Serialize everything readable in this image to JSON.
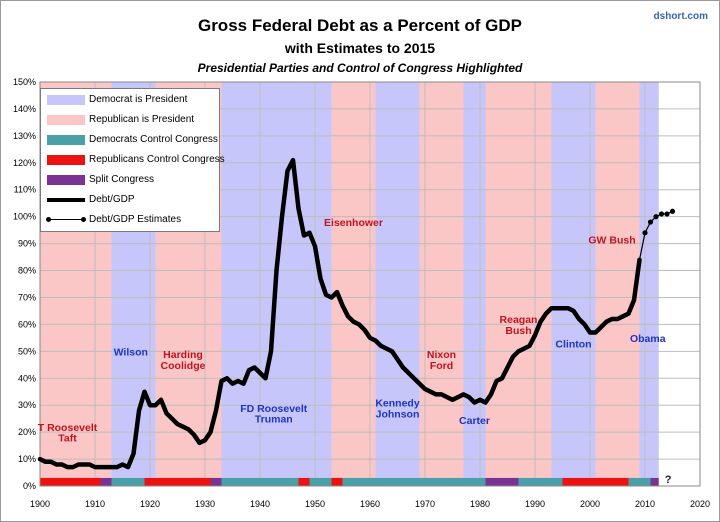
{
  "titles": {
    "title": "Gross Federal Debt as a Percent of GDP",
    "subtitle": "with Estimates to 2015",
    "subtitle2": "Presidential Parties and Control of Congress Highlighted",
    "source": "dshort.com"
  },
  "colors": {
    "democrat_president": "#c6c6fb",
    "republican_president": "#fbc6c6",
    "democrat_congress": "#4aa0a8",
    "republican_congress": "#ee1111",
    "split_congress": "#7a3294",
    "debt_line": "#000000",
    "grid": "#bdbdbd",
    "label_republican": "#c0141e",
    "label_democrat": "#1f35c0"
  },
  "legend": {
    "items": [
      {
        "label": "Democrat is President"
      },
      {
        "label": "Republican is President"
      },
      {
        "label": "Democrats Control Congress"
      },
      {
        "label": "Republicans Control Congress"
      },
      {
        "label": "Split Congress"
      },
      {
        "label": "Debt/GDP"
      },
      {
        "label": "Debt/GDP Estimates"
      }
    ]
  },
  "chart_data": {
    "type": "line",
    "title": "Gross Federal Debt as a Percent of GDP",
    "subtitle": "with Estimates to 2015",
    "xlim": [
      1900,
      2020
    ],
    "ylim": [
      0,
      150
    ],
    "x_ticks": [
      "1900",
      "1910",
      "1920",
      "1930",
      "1940",
      "1950",
      "1960",
      "1970",
      "1980",
      "1990",
      "2000",
      "2010",
      "2020"
    ],
    "y_ticks": [
      "0%",
      "10%",
      "20%",
      "30%",
      "40%",
      "50%",
      "60%",
      "70%",
      "80%",
      "90%",
      "100%",
      "110%",
      "120%",
      "130%",
      "140%",
      "150%"
    ],
    "grid": true,
    "legend_position": "top-left",
    "series": [
      {
        "name": "Debt/GDP",
        "style": "thick",
        "x": [
          1900,
          1901,
          1902,
          1903,
          1904,
          1905,
          1906,
          1907,
          1908,
          1909,
          1910,
          1911,
          1912,
          1913,
          1914,
          1915,
          1916,
          1917,
          1918,
          1919,
          1920,
          1921,
          1922,
          1923,
          1924,
          1925,
          1926,
          1927,
          1928,
          1929,
          1930,
          1931,
          1932,
          1933,
          1934,
          1935,
          1936,
          1937,
          1938,
          1939,
          1940,
          1941,
          1942,
          1943,
          1944,
          1945,
          1946,
          1947,
          1948,
          1949,
          1950,
          1951,
          1952,
          1953,
          1954,
          1955,
          1956,
          1957,
          1958,
          1959,
          1960,
          1961,
          1962,
          1963,
          1964,
          1965,
          1966,
          1967,
          1968,
          1969,
          1970,
          1971,
          1972,
          1973,
          1974,
          1975,
          1976,
          1977,
          1978,
          1979,
          1980,
          1981,
          1982,
          1983,
          1984,
          1985,
          1986,
          1987,
          1988,
          1989,
          1990,
          1991,
          1992,
          1993,
          1994,
          1995,
          1996,
          1997,
          1998,
          1999,
          2000,
          2001,
          2002,
          2003,
          2004,
          2005,
          2006,
          2007,
          2008,
          2009
        ],
        "y": [
          10,
          9,
          9,
          8,
          8,
          7,
          7,
          8,
          8,
          8,
          7,
          7,
          7,
          7,
          7,
          8,
          7,
          12,
          28,
          35,
          30,
          30,
          32,
          27,
          25,
          23,
          22,
          21,
          19,
          16,
          17,
          20,
          28,
          39,
          40,
          38,
          39,
          38,
          43,
          44,
          42,
          40,
          50,
          80,
          100,
          117,
          121,
          103,
          93,
          94,
          89,
          77,
          71,
          70,
          72,
          67,
          63,
          61,
          60,
          58,
          55,
          54,
          52,
          51,
          50,
          47,
          44,
          42,
          40,
          38,
          36,
          35,
          34,
          34,
          33,
          32,
          33,
          34,
          33,
          31,
          32,
          31,
          34,
          39,
          40,
          44,
          48,
          50,
          51,
          52,
          56,
          61,
          64,
          66,
          66,
          66,
          66,
          65,
          62,
          60,
          57,
          57,
          59,
          61,
          62,
          62,
          63,
          64,
          69,
          84
        ]
      },
      {
        "name": "Debt/GDP Estimates",
        "style": "thin-markers",
        "x": [
          2009,
          2010,
          2011,
          2012,
          2013,
          2014,
          2015
        ],
        "y": [
          84,
          94,
          98,
          100,
          101,
          101,
          102
        ]
      }
    ],
    "president_bands": [
      {
        "start": 1900,
        "end": 1913,
        "party": "R"
      },
      {
        "start": 1913,
        "end": 1921,
        "party": "D"
      },
      {
        "start": 1921,
        "end": 1933,
        "party": "R"
      },
      {
        "start": 1933,
        "end": 1953,
        "party": "D"
      },
      {
        "start": 1953,
        "end": 1961,
        "party": "R"
      },
      {
        "start": 1961,
        "end": 1969,
        "party": "D"
      },
      {
        "start": 1969,
        "end": 1977,
        "party": "R"
      },
      {
        "start": 1977,
        "end": 1981,
        "party": "D"
      },
      {
        "start": 1981,
        "end": 1993,
        "party": "R"
      },
      {
        "start": 1993,
        "end": 2001,
        "party": "D"
      },
      {
        "start": 2001,
        "end": 2009,
        "party": "R"
      },
      {
        "start": 2009,
        "end": 2012.5,
        "party": "D"
      }
    ],
    "congress_bands": [
      {
        "start": 1900,
        "end": 1911,
        "control": "R"
      },
      {
        "start": 1911,
        "end": 1913,
        "control": "S"
      },
      {
        "start": 1913,
        "end": 1919,
        "control": "D"
      },
      {
        "start": 1919,
        "end": 1931,
        "control": "R"
      },
      {
        "start": 1931,
        "end": 1933,
        "control": "S"
      },
      {
        "start": 1933,
        "end": 1947,
        "control": "D"
      },
      {
        "start": 1947,
        "end": 1949,
        "control": "R"
      },
      {
        "start": 1949,
        "end": 1953,
        "control": "D"
      },
      {
        "start": 1953,
        "end": 1955,
        "control": "R"
      },
      {
        "start": 1955,
        "end": 1981,
        "control": "D"
      },
      {
        "start": 1981,
        "end": 1987,
        "control": "S"
      },
      {
        "start": 1987,
        "end": 1995,
        "control": "D"
      },
      {
        "start": 1995,
        "end": 2007,
        "control": "R"
      },
      {
        "start": 2007,
        "end": 2011,
        "control": "D"
      },
      {
        "start": 2011,
        "end": 2012.5,
        "control": "S"
      }
    ],
    "congress_unknown_label": "?",
    "annotations": [
      {
        "text": "T Roosevelt",
        "x": 1905,
        "y": 20.5,
        "party": "R"
      },
      {
        "text": "Taft",
        "x": 1905,
        "y": 16.5,
        "party": "R"
      },
      {
        "text": "Wilson",
        "x": 1916.5,
        "y": 48.5,
        "party": "D"
      },
      {
        "text": "Harding",
        "x": 1926,
        "y": 47.5,
        "party": "R"
      },
      {
        "text": "Coolidge",
        "x": 1926,
        "y": 43.5,
        "party": "R"
      },
      {
        "text": "FD Roosevelt",
        "x": 1942.5,
        "y": 27.5,
        "party": "D"
      },
      {
        "text": "Truman",
        "x": 1942.5,
        "y": 23.5,
        "party": "D"
      },
      {
        "text": "Eisenhower",
        "x": 1957,
        "y": 96.5,
        "party": "R"
      },
      {
        "text": "Kennedy",
        "x": 1965,
        "y": 29.5,
        "party": "D"
      },
      {
        "text": "Johnson",
        "x": 1965,
        "y": 25.5,
        "party": "D"
      },
      {
        "text": "Nixon",
        "x": 1973,
        "y": 47.5,
        "party": "R"
      },
      {
        "text": "Ford",
        "x": 1973,
        "y": 43.5,
        "party": "R"
      },
      {
        "text": "Carter",
        "x": 1979,
        "y": 23,
        "party": "D"
      },
      {
        "text": "Reagan",
        "x": 1987,
        "y": 60.5,
        "party": "R"
      },
      {
        "text": "Bush",
        "x": 1987,
        "y": 56.5,
        "party": "R"
      },
      {
        "text": "Clinton",
        "x": 1997,
        "y": 51.5,
        "party": "D"
      },
      {
        "text": "GW Bush",
        "x": 2004,
        "y": 90,
        "party": "R"
      },
      {
        "text": "Obama",
        "x": 2010.5,
        "y": 53.5,
        "party": "D"
      }
    ]
  }
}
